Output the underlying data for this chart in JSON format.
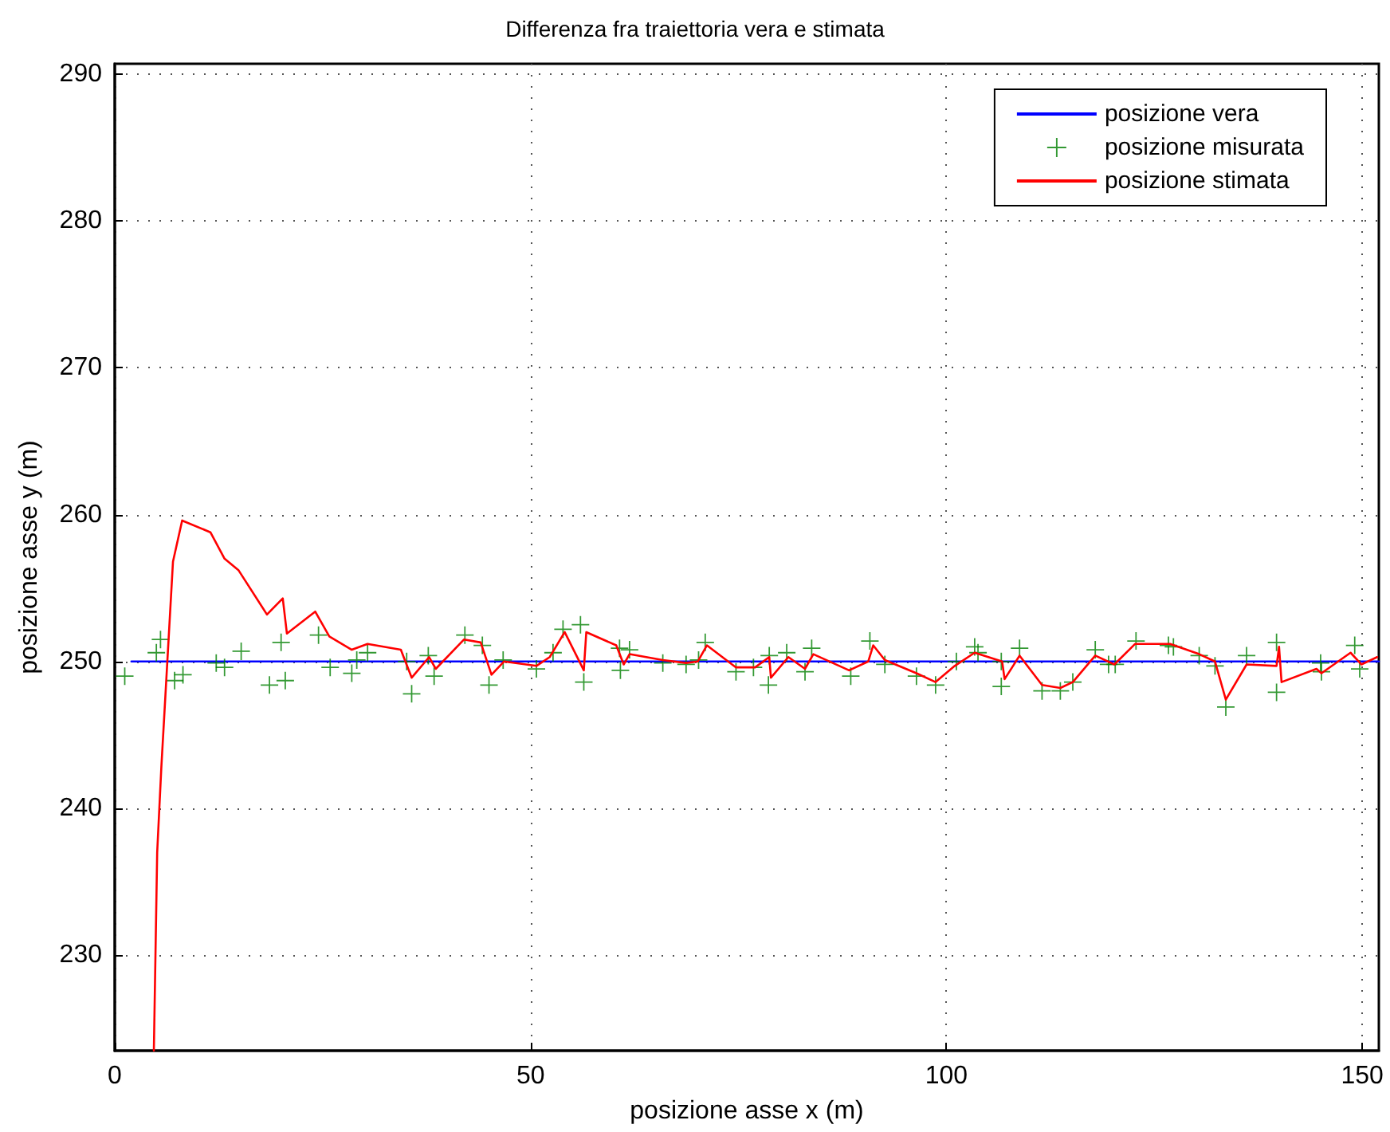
{
  "chart_data": {
    "type": "line",
    "title": "Differenza fra traiettoria vera e stimata",
    "xlabel": "posizione asse x (m)",
    "ylabel": "posizione asse y (m)",
    "xlim": [
      0,
      152
    ],
    "ylim": [
      223.5,
      290.7
    ],
    "xticks": [
      0,
      50,
      100,
      150
    ],
    "yticks": [
      230,
      240,
      250,
      260,
      270,
      280,
      290
    ],
    "grid": true,
    "legend": "top right",
    "series": [
      {
        "name": "posizione vera",
        "color": "#0000ff",
        "marker": "none",
        "x": [
          2,
          152
        ],
        "values": [
          250,
          250
        ]
      },
      {
        "name": "posizione misurata",
        "type": "scatter",
        "color": "#008000",
        "marker": "cross",
        "x": [
          1.2,
          5.0,
          5.5,
          7.2,
          8.2,
          12.2,
          13.2,
          15.2,
          18.6,
          20.0,
          20.5,
          24.5,
          25.9,
          28.5,
          29.1,
          30.4,
          35.1,
          35.7,
          37.7,
          38.4,
          42.1,
          44.2,
          45.0,
          46.7,
          50.7,
          52.7,
          53.9,
          56.0,
          56.4,
          60.7,
          60.8,
          61.9,
          65.9,
          68.7,
          70.2,
          71.0,
          74.7,
          76.8,
          78.6,
          78.7,
          80.8,
          83.0,
          83.8,
          88.5,
          90.8,
          92.6,
          96.4,
          98.7,
          101.2,
          103.4,
          103.8,
          106.6,
          106.6,
          108.8,
          111.5,
          113.7,
          115.2,
          117.9,
          119.5,
          120.3,
          122.8,
          126.7,
          127.3,
          130.4,
          132.3,
          133.6,
          136.1,
          139.7,
          139.7,
          145.0,
          145.1,
          149.1,
          149.7
        ],
        "values": [
          249.0,
          250.6,
          251.5,
          248.7,
          249.1,
          249.9,
          249.6,
          250.7,
          248.4,
          251.3,
          248.7,
          251.8,
          249.6,
          249.2,
          250.1,
          250.6,
          250.0,
          247.8,
          250.4,
          249.0,
          251.8,
          251.1,
          248.4,
          250.1,
          249.5,
          250.6,
          252.2,
          252.5,
          248.6,
          250.9,
          249.4,
          250.8,
          249.9,
          249.8,
          250.1,
          251.3,
          249.3,
          249.6,
          248.4,
          250.4,
          250.6,
          249.3,
          250.9,
          249.0,
          251.4,
          249.8,
          249.0,
          248.4,
          250.0,
          251.0,
          250.6,
          248.3,
          250.0,
          250.9,
          248.0,
          248.0,
          248.6,
          250.8,
          249.8,
          249.8,
          251.4,
          251.1,
          251.0,
          250.4,
          249.7,
          246.9,
          250.4,
          251.3,
          247.9,
          249.9,
          249.3,
          251.1,
          249.5
        ]
      },
      {
        "name": "posizione stimata",
        "color": "#ff0000",
        "marker": "none",
        "x": [
          4.7,
          5.1,
          5.6,
          7.0,
          8.1,
          11.5,
          13.2,
          14.9,
          18.3,
          20.2,
          20.7,
          24.1,
          25.8,
          28.5,
          30.4,
          34.4,
          35.7,
          37.8,
          38.6,
          42.0,
          44.0,
          45.3,
          46.8,
          50.7,
          52.3,
          54.1,
          56.4,
          56.7,
          60.3,
          61.2,
          61.9,
          65.9,
          68.7,
          70.1,
          71.2,
          74.7,
          77.0,
          78.7,
          78.9,
          81.0,
          83.0,
          84.0,
          88.3,
          90.6,
          91.2,
          92.6,
          96.4,
          98.7,
          101.0,
          103.4,
          106.7,
          107.0,
          108.8,
          111.5,
          113.7,
          115.2,
          117.9,
          120.2,
          122.7,
          126.9,
          130.4,
          132.3,
          133.6,
          136.1,
          139.7,
          140.0,
          140.3,
          144.5,
          145.1,
          148.6,
          149.9,
          151.8
        ],
        "values": [
          223.5,
          237.0,
          242.8,
          256.8,
          259.6,
          258.8,
          257.0,
          256.2,
          253.2,
          254.3,
          251.9,
          253.4,
          251.7,
          250.8,
          251.2,
          250.8,
          248.9,
          250.3,
          249.5,
          251.5,
          251.3,
          249.1,
          250.0,
          249.7,
          250.3,
          252.0,
          249.4,
          252.0,
          251.1,
          249.8,
          250.5,
          250.1,
          249.9,
          250.0,
          251.1,
          249.6,
          249.6,
          250.3,
          248.9,
          250.3,
          249.5,
          250.5,
          249.4,
          250.0,
          251.1,
          250.1,
          249.2,
          248.6,
          249.7,
          250.6,
          250.0,
          248.8,
          250.4,
          248.4,
          248.2,
          248.6,
          250.4,
          249.8,
          251.2,
          251.2,
          250.5,
          250.0,
          247.4,
          249.8,
          249.7,
          251.0,
          248.6,
          249.5,
          249.2,
          250.6,
          249.8,
          250.3
        ]
      }
    ]
  }
}
